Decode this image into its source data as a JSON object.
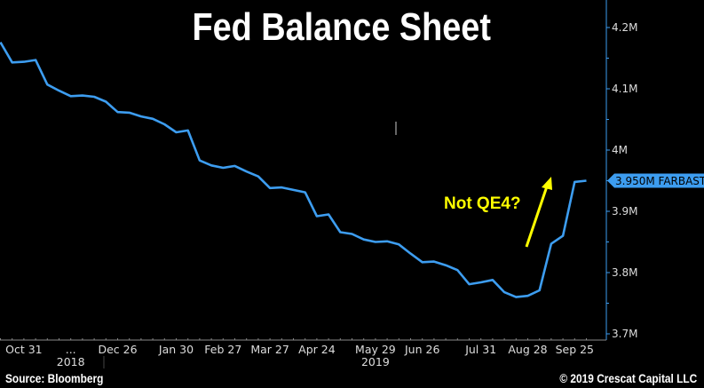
{
  "chart_data": {
    "type": "line",
    "title": "Fed Balance Sheet",
    "xlabel": "",
    "ylabel": "",
    "ylim": [
      3.7,
      4.2
    ],
    "y_unit": "M",
    "y_ticks": [
      "4.2M",
      "4.1M",
      "4M",
      "3.9M",
      "3.8M",
      "3.7M"
    ],
    "y_tick_values": [
      4.2,
      4.1,
      4.0,
      3.9,
      3.8,
      3.7
    ],
    "x_tick_labels": [
      {
        "label": "Oct 31",
        "date": "2018-10-31"
      },
      {
        "label": "...",
        "date": "2018-11-28"
      },
      {
        "label": "Dec 26",
        "date": "2018-12-26"
      },
      {
        "label": "Jan 30",
        "date": "2019-01-30"
      },
      {
        "label": "Feb 27",
        "date": "2019-02-27"
      },
      {
        "label": "Mar 27",
        "date": "2019-03-27"
      },
      {
        "label": "Apr 24",
        "date": "2019-04-24"
      },
      {
        "label": "May 29",
        "date": "2019-05-29"
      },
      {
        "label": "Jun 26",
        "date": "2019-06-26"
      },
      {
        "label": "Jul 31",
        "date": "2019-07-31"
      },
      {
        "label": "Aug 28",
        "date": "2019-08-28"
      },
      {
        "label": "Sep 25",
        "date": "2019-09-25"
      }
    ],
    "year_labels": [
      {
        "label": "2018",
        "date": "2018-11-28"
      },
      {
        "label": "2019",
        "date": "2019-05-29"
      }
    ],
    "grid": false,
    "series": [
      {
        "name": "FARBAST",
        "color": "#3d9df0",
        "last_value_label": "3.950M FARBAST",
        "x": [
          "2018-10-17",
          "2018-10-24",
          "2018-10-31",
          "2018-11-07",
          "2018-11-14",
          "2018-11-21",
          "2018-11-28",
          "2018-12-05",
          "2018-12-12",
          "2018-12-19",
          "2018-12-26",
          "2019-01-02",
          "2019-01-09",
          "2019-01-16",
          "2019-01-23",
          "2019-01-30",
          "2019-02-06",
          "2019-02-13",
          "2019-02-20",
          "2019-02-27",
          "2019-03-06",
          "2019-03-13",
          "2019-03-20",
          "2019-03-27",
          "2019-04-03",
          "2019-04-10",
          "2019-04-17",
          "2019-04-24",
          "2019-05-01",
          "2019-05-08",
          "2019-05-15",
          "2019-05-22",
          "2019-05-29",
          "2019-06-05",
          "2019-06-12",
          "2019-06-19",
          "2019-06-26",
          "2019-07-03",
          "2019-07-10",
          "2019-07-17",
          "2019-07-24",
          "2019-07-31",
          "2019-08-07",
          "2019-08-14",
          "2019-08-21",
          "2019-08-28",
          "2019-09-04",
          "2019-09-11",
          "2019-09-18",
          "2019-09-25",
          "2019-10-02"
        ],
        "values": [
          4.176,
          4.143,
          4.144,
          4.147,
          4.107,
          4.097,
          4.088,
          4.089,
          4.087,
          4.079,
          4.062,
          4.061,
          4.055,
          4.051,
          4.042,
          4.029,
          4.032,
          3.983,
          3.975,
          3.971,
          3.974,
          3.965,
          3.957,
          3.938,
          3.939,
          3.935,
          3.931,
          3.892,
          3.895,
          3.866,
          3.863,
          3.854,
          3.85,
          3.851,
          3.846,
          3.831,
          3.817,
          3.818,
          3.812,
          3.804,
          3.781,
          3.784,
          3.788,
          3.768,
          3.76,
          3.762,
          3.771,
          3.847,
          3.86,
          3.948,
          3.95
        ]
      }
    ],
    "annotations": [
      {
        "text": "Not QE4?",
        "color": "#ffff00",
        "arrow": "up"
      }
    ]
  },
  "footer": {
    "source": "Source: Bloomberg",
    "copyright": "© 2019 Crescat Capital LLC"
  },
  "colors": {
    "background": "#000000",
    "axis": "#3d9df0",
    "annotation": "#ffff00"
  }
}
